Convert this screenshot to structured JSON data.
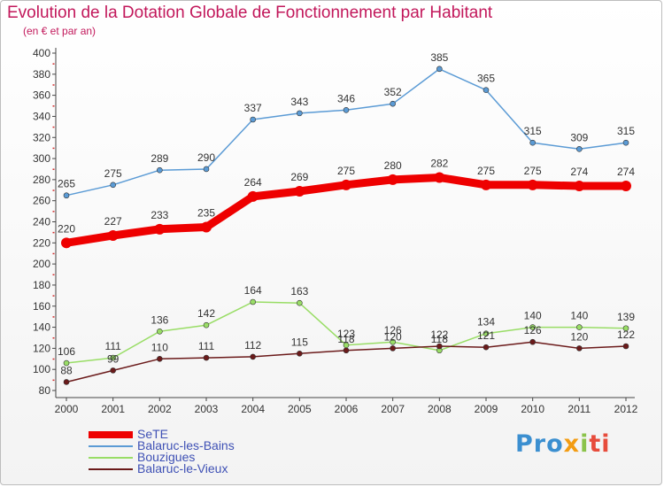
{
  "title": "Evolution de la Dotation Globale de Fonctionnement par Habitant",
  "subtitle": "(en € et par an)",
  "logo": {
    "text": "Proxiti",
    "parts": [
      "Pro",
      "x",
      "i",
      "ti"
    ]
  },
  "chart_data": {
    "type": "line",
    "x": [
      2000,
      2001,
      2002,
      2003,
      2004,
      2005,
      2006,
      2007,
      2008,
      2009,
      2010,
      2011,
      2012
    ],
    "ylim": [
      80,
      400
    ],
    "yticks": [
      80,
      100,
      120,
      140,
      160,
      180,
      200,
      220,
      240,
      260,
      280,
      300,
      320,
      340,
      360,
      380,
      400
    ],
    "grid": false,
    "legend": "bottom-left",
    "series": [
      {
        "name": "SeTE",
        "color": "#ee0000",
        "values": [
          220,
          227,
          233,
          235,
          264,
          269,
          275,
          280,
          282,
          275,
          275,
          274,
          274
        ]
      },
      {
        "name": "Balaruc-les-Bains",
        "color": "#5b9bd5",
        "values": [
          265,
          275,
          289,
          290,
          337,
          343,
          346,
          352,
          385,
          365,
          315,
          309,
          315
        ]
      },
      {
        "name": "Bouzigues",
        "color": "#99dd66",
        "values": [
          106,
          111,
          136,
          142,
          164,
          163,
          123,
          126,
          118,
          134,
          140,
          140,
          139
        ]
      },
      {
        "name": "Balaruc-le-Vieux",
        "color": "#6b1a1a",
        "values": [
          88,
          99,
          110,
          111,
          112,
          115,
          118,
          120,
          122,
          121,
          126,
          120,
          122
        ]
      }
    ],
    "point_labels": [
      [
        "220",
        "227",
        "233",
        "235",
        "264",
        "269",
        "275",
        "280",
        "282",
        "275",
        "275",
        "274",
        "274"
      ],
      [
        "265",
        "275",
        "289",
        "290",
        "337",
        "343",
        "346",
        "352",
        "385",
        "365",
        "315",
        "309",
        "315"
      ],
      [
        "106",
        "111",
        "136",
        "142",
        "164",
        "163",
        "123",
        "126",
        "118",
        "134",
        "140",
        "140",
        "139"
      ],
      [
        "88",
        "99",
        "110",
        "111",
        "112",
        "115",
        "118",
        "120",
        "122",
        "121",
        "126",
        "120",
        "122"
      ]
    ]
  }
}
